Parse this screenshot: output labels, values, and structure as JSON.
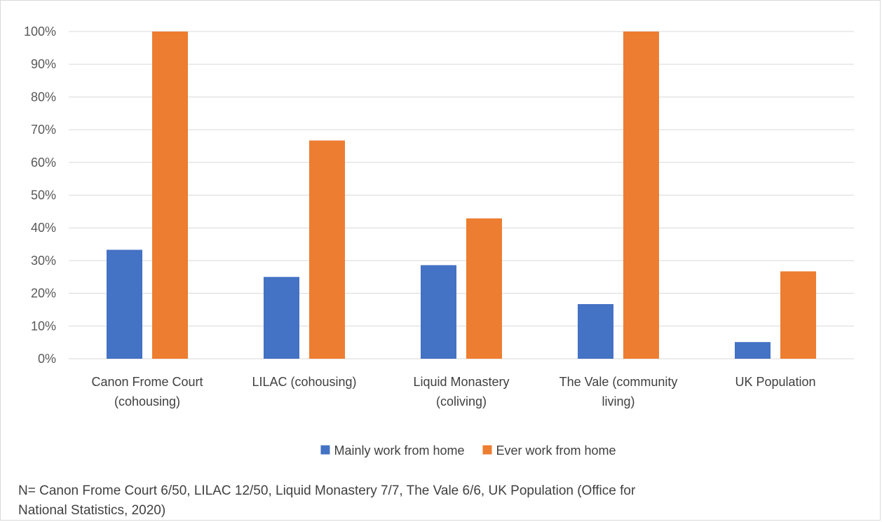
{
  "chart_data": {
    "type": "bar",
    "categories": [
      [
        "Canon Frome Court",
        "(cohousing)"
      ],
      [
        "LILAC (cohousing)"
      ],
      [
        "Liquid Monastery",
        "(coliving)"
      ],
      [
        "The Vale (community",
        "living)"
      ],
      [
        "UK Population"
      ]
    ],
    "series": [
      {
        "name": "Mainly work from home",
        "color": "#4472C4",
        "values": [
          33.3,
          25.0,
          28.6,
          16.7,
          5.1
        ]
      },
      {
        "name": "Ever work from home",
        "color": "#ED7D31",
        "values": [
          100,
          66.7,
          42.9,
          100,
          26.7
        ]
      }
    ],
    "ylim": [
      0,
      100
    ],
    "yticks": [
      "0%",
      "10%",
      "20%",
      "30%",
      "40%",
      "50%",
      "60%",
      "70%",
      "80%",
      "90%",
      "100%"
    ],
    "grid": true,
    "legend_position": "bottom"
  },
  "footnote": "N= Canon Frome Court 6/50, LILAC 12/50, Liquid Monastery 7/7, The Vale 6/6, UK Population (Office for National Statistics, 2020)"
}
